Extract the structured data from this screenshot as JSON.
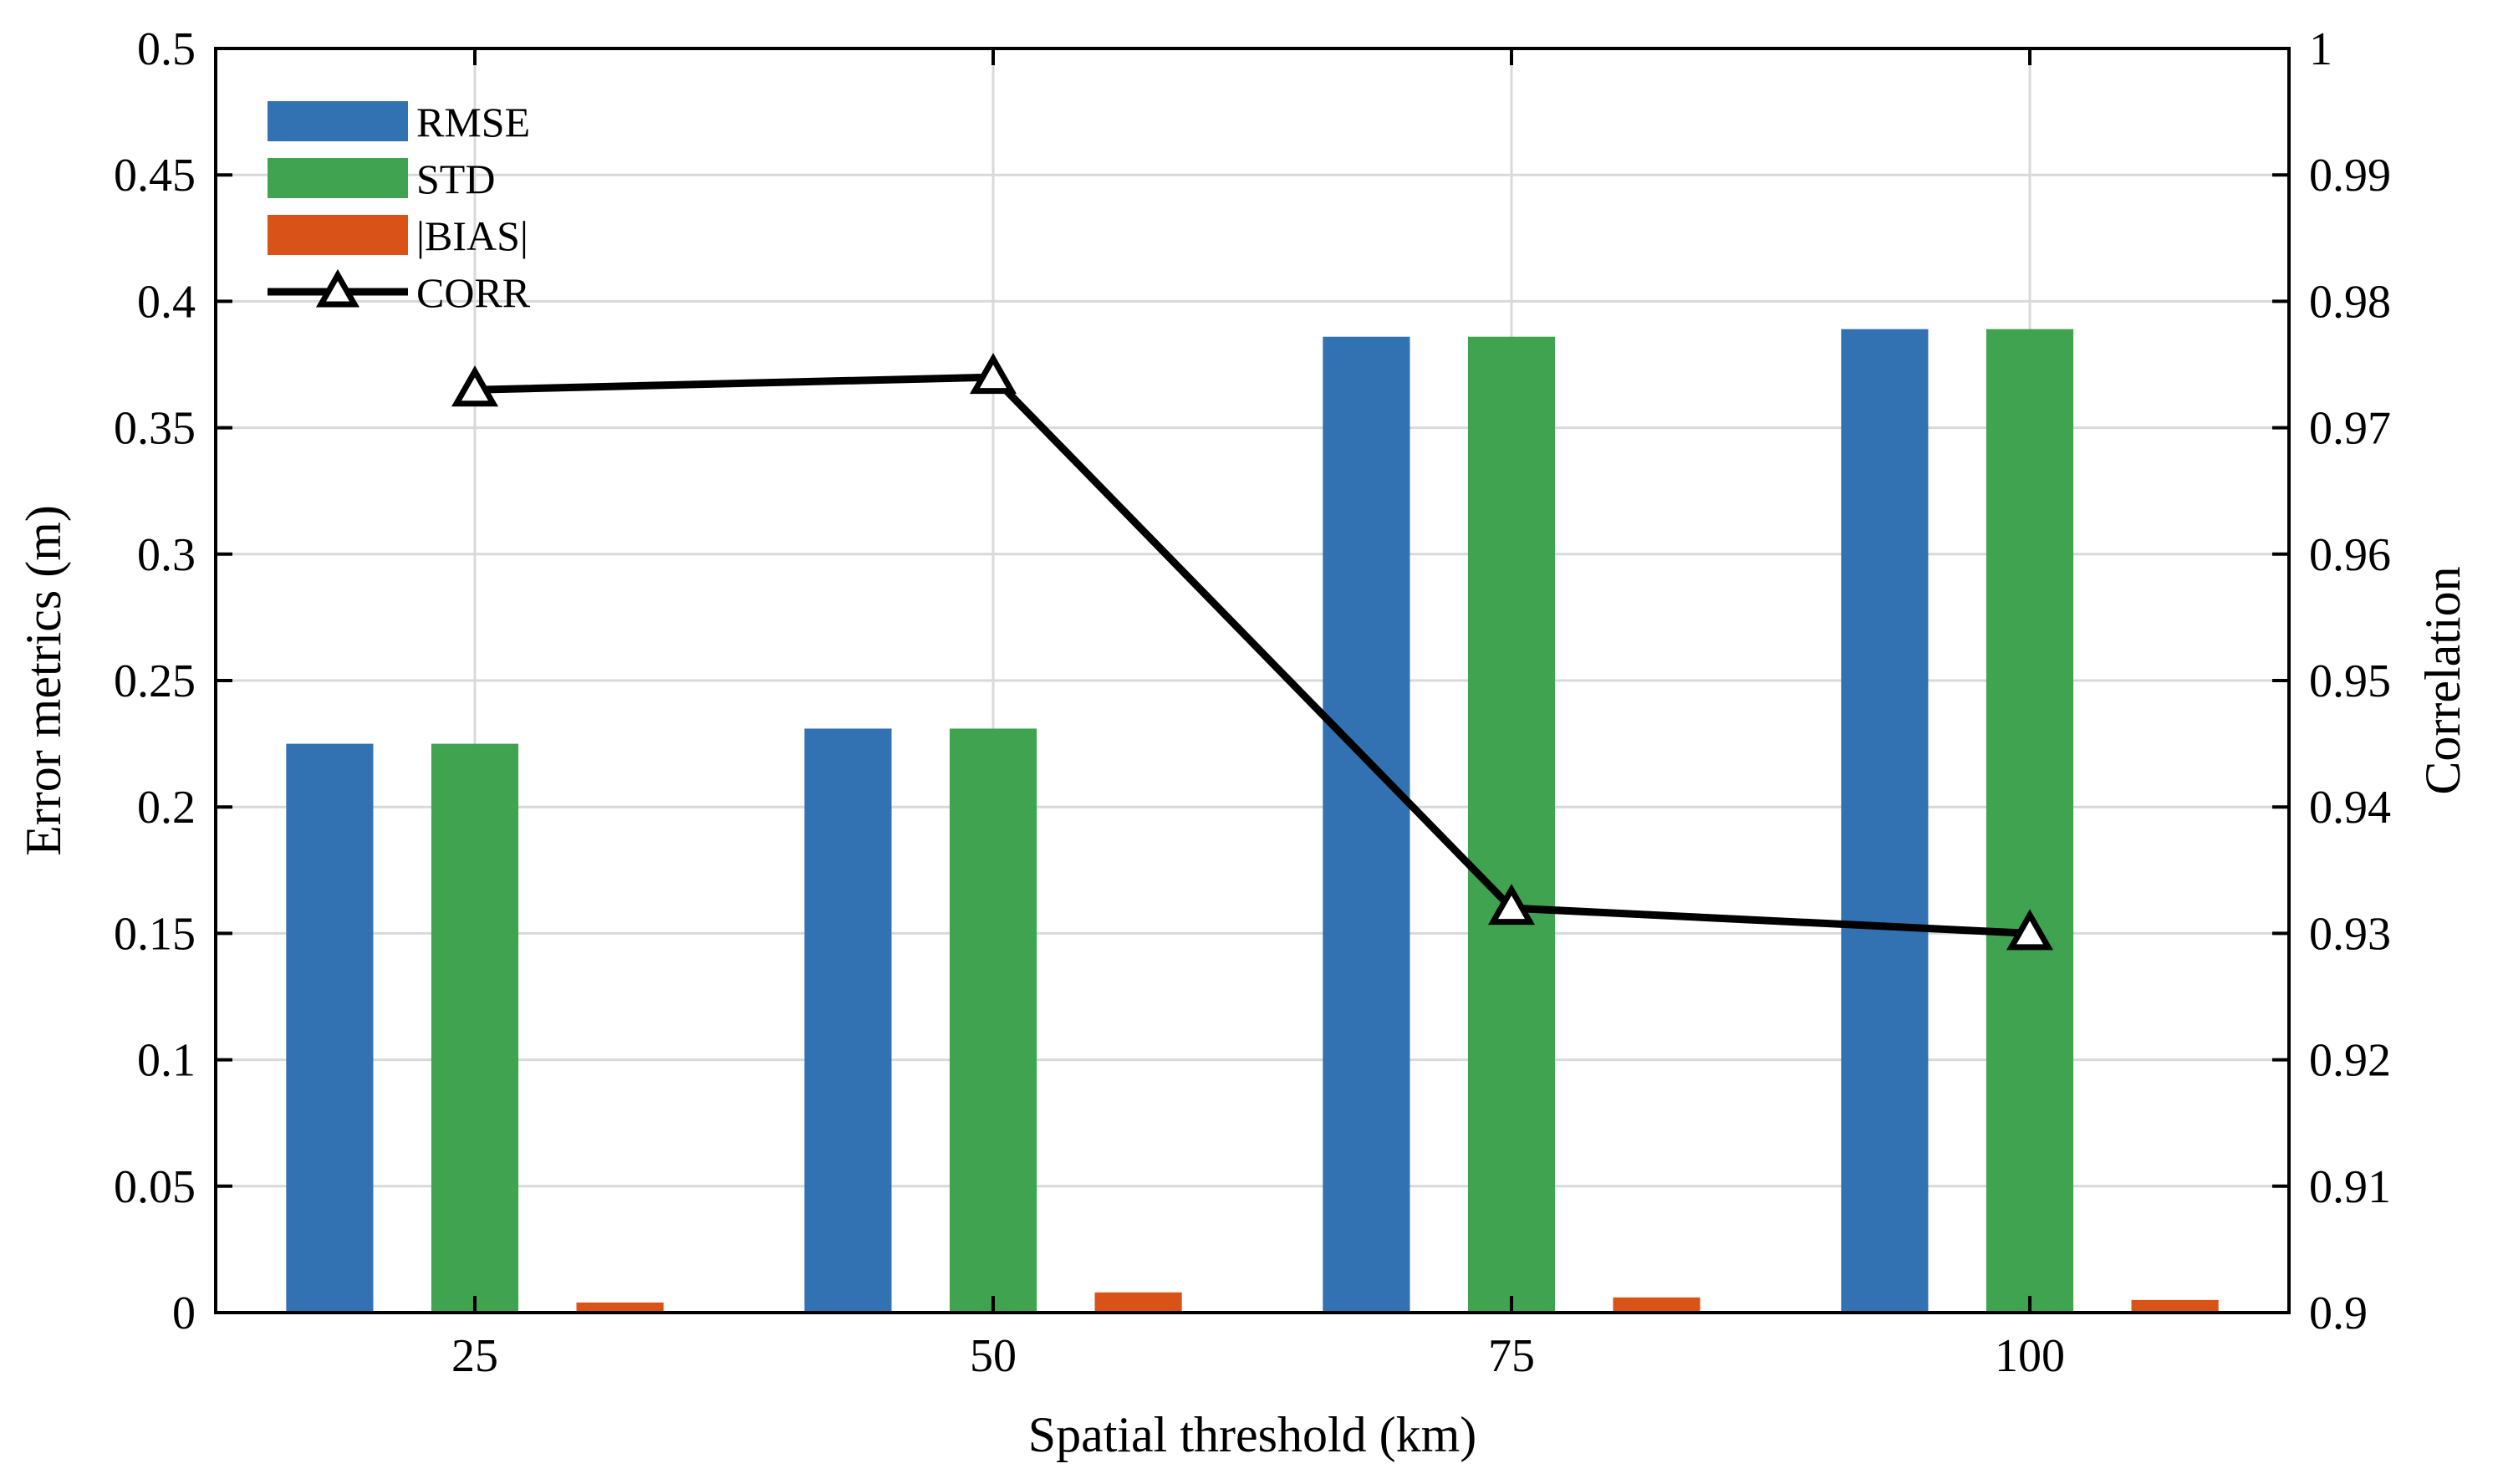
{
  "chart_data": {
    "type": "bar",
    "title": "",
    "xlabel": "Spatial threshold (km)",
    "ylabel": "Error metrics (m)",
    "y2label": "Correlation",
    "categories": [
      "25",
      "50",
      "75",
      "100"
    ],
    "ylim": [
      0,
      0.5
    ],
    "y2lim": [
      0.9,
      1
    ],
    "yticks": [
      "0",
      "0.05",
      "0.1",
      "0.15",
      "0.2",
      "0.25",
      "0.3",
      "0.35",
      "0.4",
      "0.45",
      "0.5"
    ],
    "y2ticks": [
      "0.9",
      "0.91",
      "0.92",
      "0.93",
      "0.94",
      "0.95",
      "0.96",
      "0.97",
      "0.98",
      "0.99",
      "1"
    ],
    "grid": true,
    "legend_position": "top-left",
    "series": [
      {
        "name": "RMSE",
        "kind": "bar",
        "axis": "left",
        "color": "#3272b3",
        "values": [
          0.225,
          0.231,
          0.386,
          0.389
        ]
      },
      {
        "name": "STD",
        "kind": "bar",
        "axis": "left",
        "color": "#3fa350",
        "values": [
          0.225,
          0.231,
          0.386,
          0.389
        ]
      },
      {
        "name": "|BIAS|",
        "kind": "bar",
        "axis": "left",
        "color": "#d95319",
        "values": [
          0.004,
          0.008,
          0.006,
          0.005
        ]
      },
      {
        "name": "CORR",
        "kind": "line",
        "axis": "right",
        "color": "#000000",
        "marker": "triangle",
        "values": [
          0.973,
          0.974,
          0.932,
          0.93
        ]
      }
    ]
  }
}
